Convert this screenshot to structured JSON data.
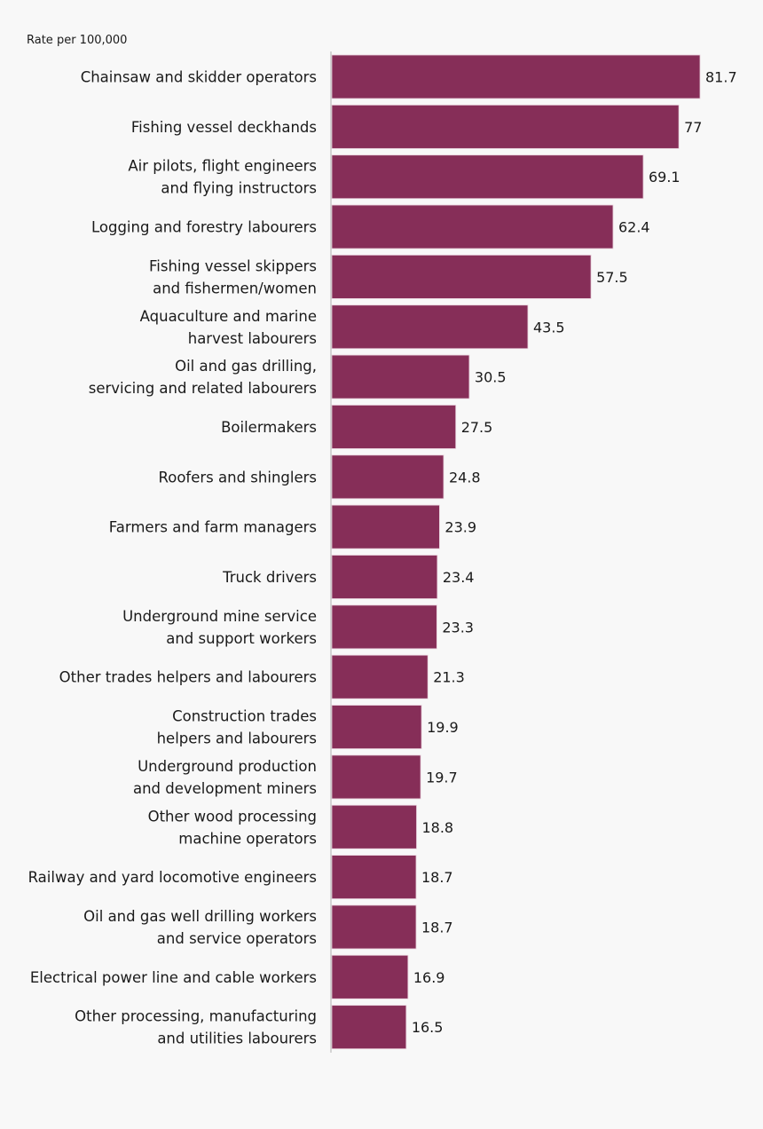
{
  "chart_data": {
    "type": "bar",
    "orientation": "horizontal",
    "ylabel": "Rate per 100,000",
    "bar_color": "#862e58",
    "xlim": [
      0,
      81.7
    ],
    "grid": false,
    "categories": [
      [
        "Chainsaw and skidder operators"
      ],
      [
        "Fishing vessel deckhands"
      ],
      [
        "Air pilots, flight engineers",
        "and flying instructors"
      ],
      [
        "Logging and forestry labourers"
      ],
      [
        "Fishing vessel skippers",
        "and fishermen/women"
      ],
      [
        "Aquaculture and marine",
        "harvest labourers"
      ],
      [
        "Oil and gas drilling,",
        "servicing and related labourers"
      ],
      [
        "Boilermakers"
      ],
      [
        "Roofers and shinglers"
      ],
      [
        "Farmers and farm managers"
      ],
      [
        "Truck drivers"
      ],
      [
        "Underground mine service",
        "and support workers"
      ],
      [
        "Other trades helpers and labourers"
      ],
      [
        "Construction trades",
        "helpers and labourers"
      ],
      [
        "Underground production",
        "and development miners"
      ],
      [
        "Other wood processing",
        "machine operators"
      ],
      [
        "Railway and yard locomotive engineers"
      ],
      [
        "Oil and gas well drilling workers",
        "and service operators"
      ],
      [
        "Electrical power line and cable workers"
      ],
      [
        "Other processing, manufacturing",
        "and utilities labourers"
      ]
    ],
    "values": [
      81.7,
      77,
      69.1,
      62.4,
      57.5,
      43.5,
      30.5,
      27.5,
      24.8,
      23.9,
      23.4,
      23.3,
      21.3,
      19.9,
      19.7,
      18.8,
      18.7,
      18.7,
      16.9,
      16.5
    ],
    "value_labels": [
      "81.7",
      "77",
      "69.1",
      "62.4",
      "57.5",
      "43.5",
      "30.5",
      "27.5",
      "24.8",
      "23.9",
      "23.4",
      "23.3",
      "21.3",
      "19.9",
      "19.7",
      "18.8",
      "18.7",
      "18.7",
      "16.9",
      "16.5"
    ]
  }
}
